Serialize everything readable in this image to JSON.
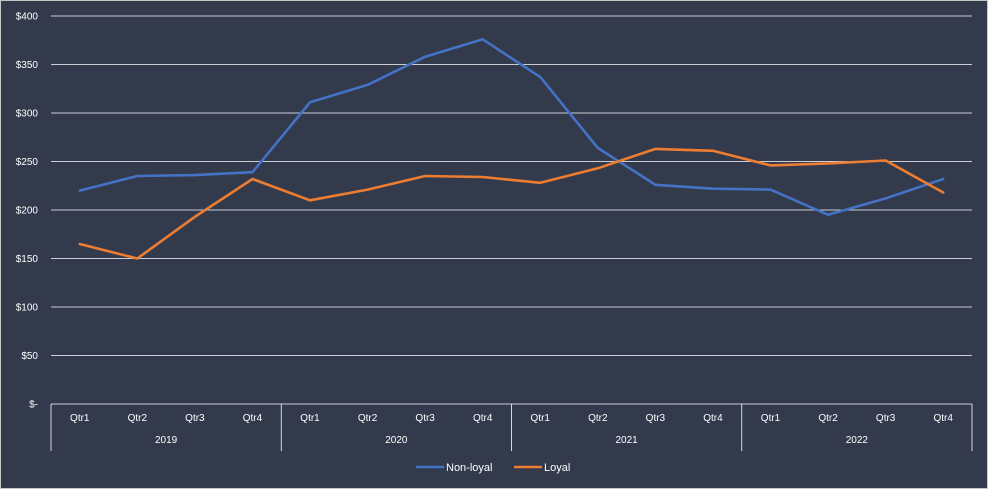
{
  "chart_data": {
    "type": "line",
    "title": "",
    "xlabel": "",
    "ylabel": "",
    "ylim": [
      0,
      400
    ],
    "yticks": [
      0,
      50,
      100,
      150,
      200,
      250,
      300,
      350,
      400
    ],
    "ytick_labels": [
      "$-",
      "$50",
      "$100",
      "$150",
      "$200",
      "$250",
      "$300",
      "$350",
      "$400"
    ],
    "grid": true,
    "legend_position": "bottom",
    "years": [
      "2019",
      "2020",
      "2021",
      "2022"
    ],
    "quarters": [
      "Qtr1",
      "Qtr2",
      "Qtr3",
      "Qtr4"
    ],
    "categories": [
      "2019 Qtr1",
      "2019 Qtr2",
      "2019 Qtr3",
      "2019 Qtr4",
      "2020 Qtr1",
      "2020 Qtr2",
      "2020 Qtr3",
      "2020 Qtr4",
      "2021 Qtr1",
      "2021 Qtr2",
      "2021 Qtr3",
      "2021 Qtr4",
      "2022 Qtr1",
      "2022 Qtr2",
      "2022 Qtr3",
      "2022 Qtr4"
    ],
    "series": [
      {
        "name": "Non-loyal",
        "color": "#4472c4",
        "values": [
          220,
          235,
          236,
          239,
          311,
          329,
          358,
          376,
          337,
          264,
          226,
          222,
          221,
          195,
          212,
          232
        ]
      },
      {
        "name": "Loyal",
        "color": "#ed7d31",
        "values": [
          165,
          150,
          193,
          232,
          210,
          221,
          235,
          234,
          228,
          243,
          263,
          261,
          246,
          248,
          251,
          218
        ]
      }
    ]
  }
}
